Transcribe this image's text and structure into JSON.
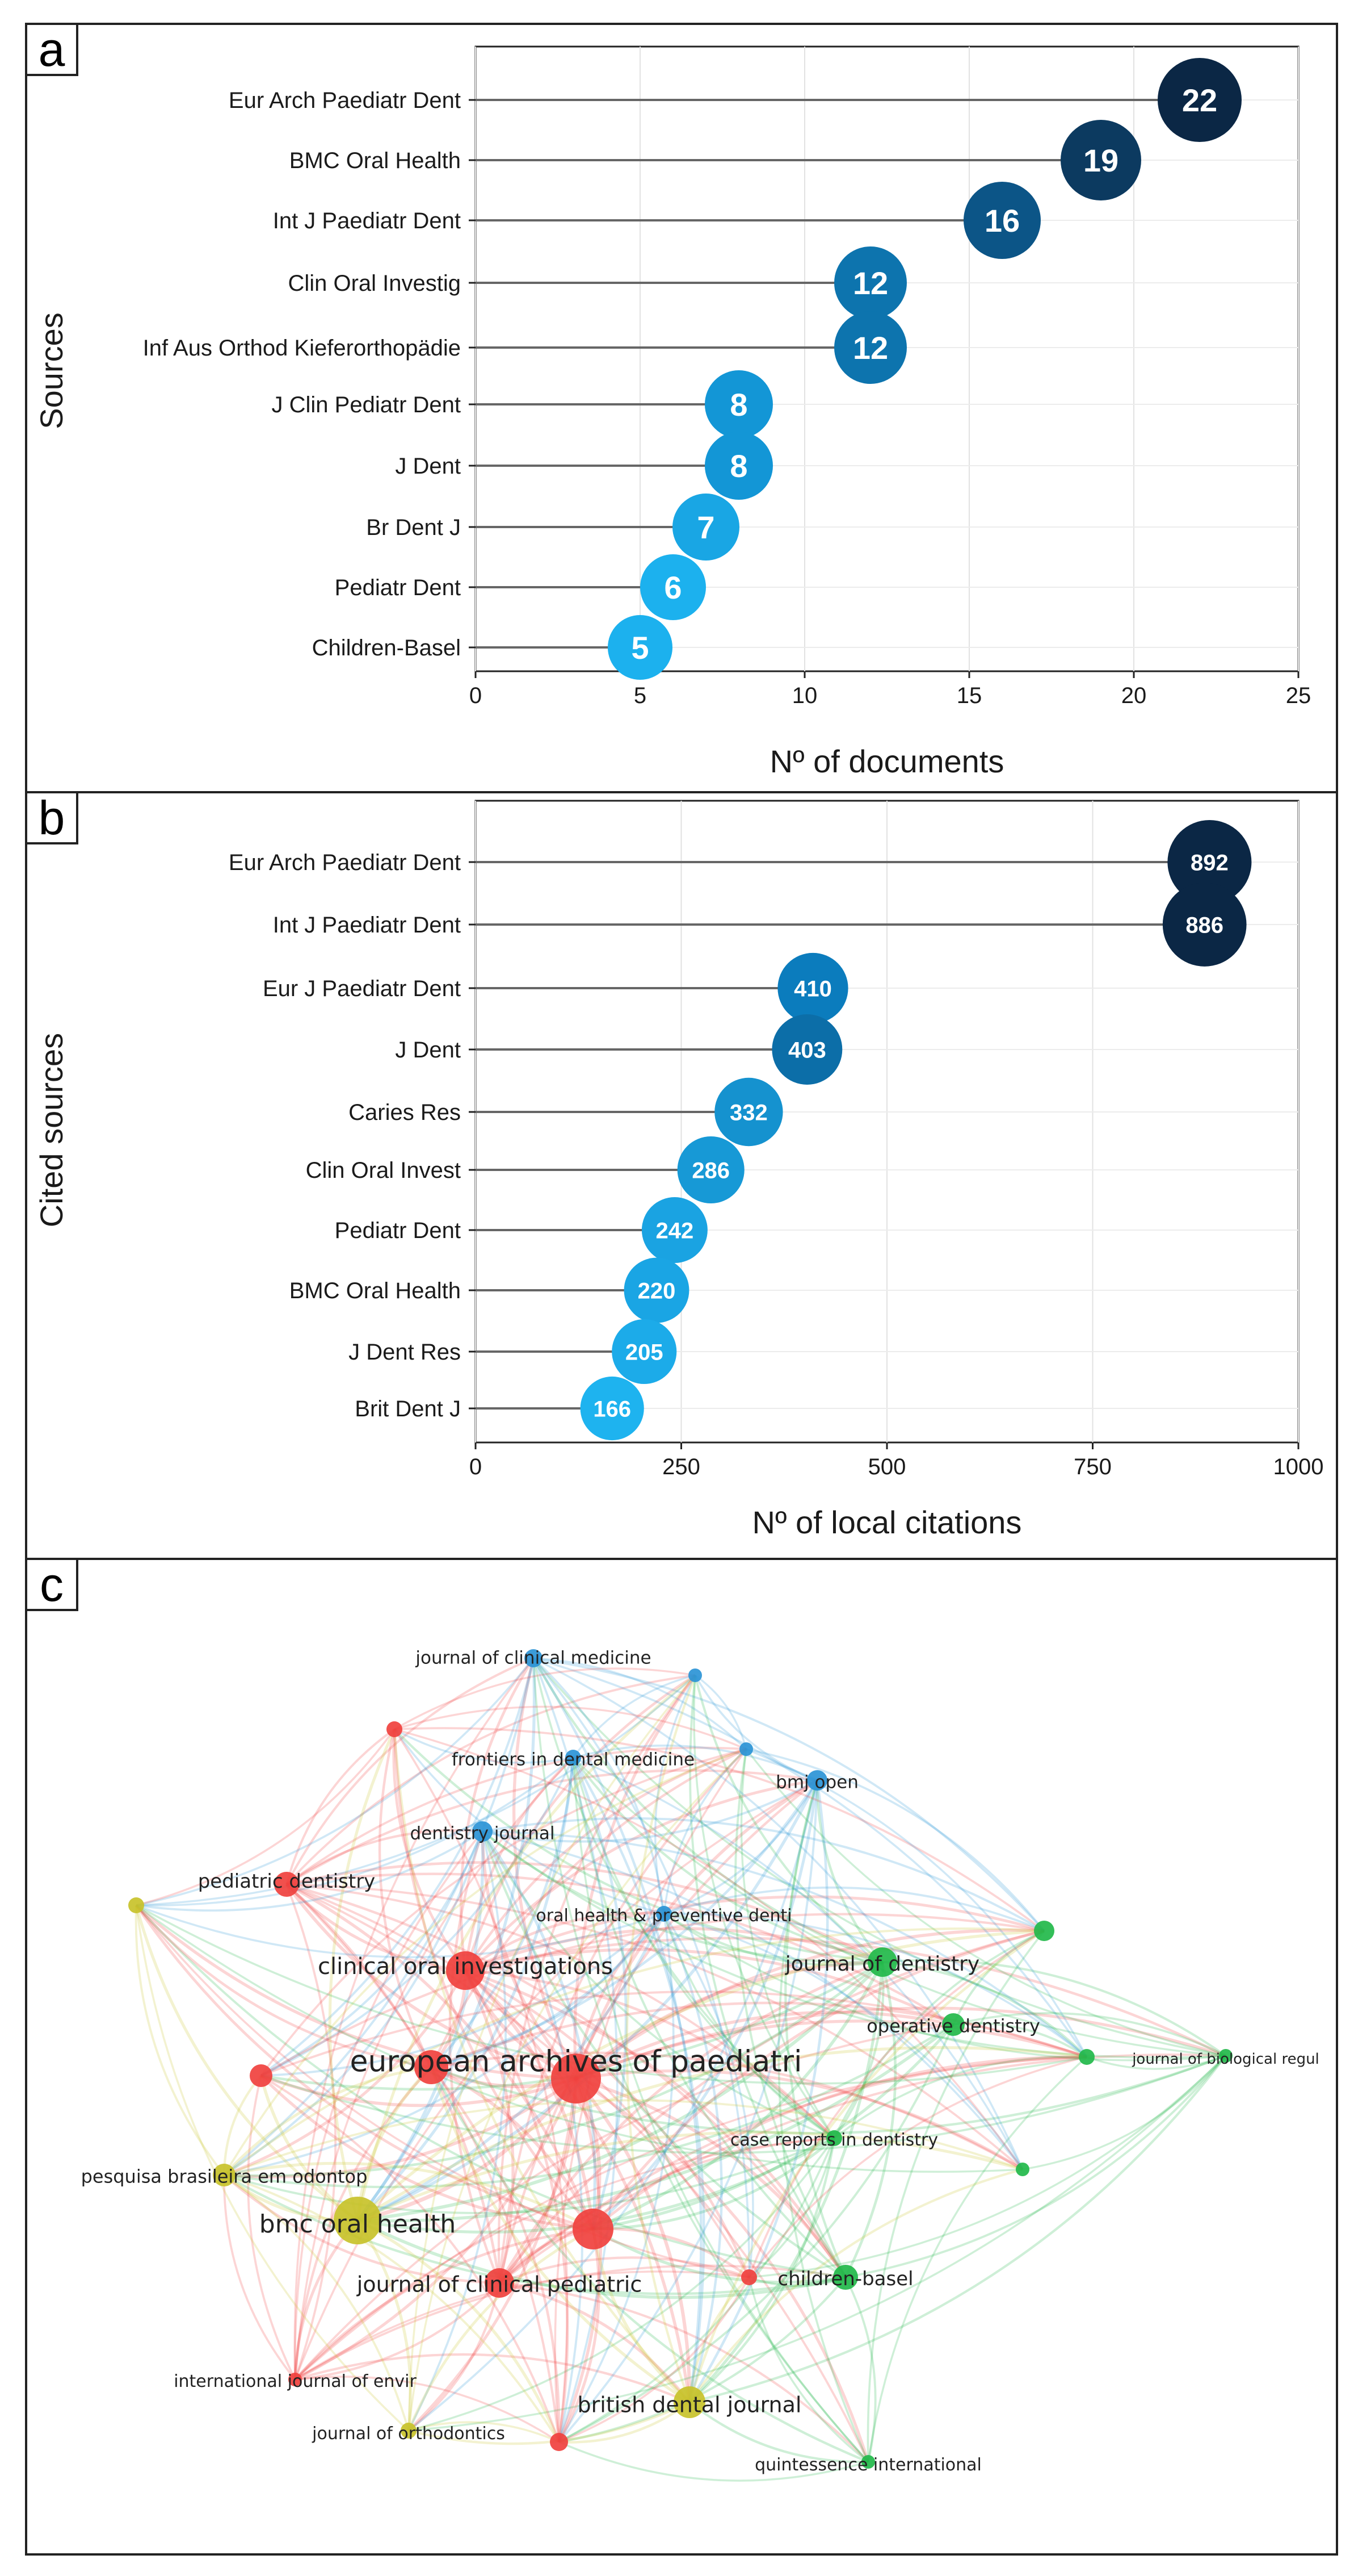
{
  "panels": [
    {
      "letter": "a"
    },
    {
      "letter": "b"
    },
    {
      "letter": "c"
    }
  ],
  "chart_data": [
    {
      "type": "scatter",
      "subtype": "lollipop",
      "panel": "a",
      "ylabel": "Sources",
      "xlabel": "Nº of documents",
      "xlim": [
        0,
        25
      ],
      "xticks": [
        0,
        5,
        10,
        15,
        20,
        25
      ],
      "categories": [
        "Eur Arch Paediatr Dent",
        "BMC Oral Health",
        "Int J Paediatr Dent",
        "Clin Oral Investig",
        "Inf Aus Orthod Kieferorthopädie",
        "J Clin Pediatr Dent",
        "J Dent",
        "Br Dent J",
        "Pediatr Dent",
        "Children-Basel"
      ],
      "values": [
        22,
        19,
        16,
        12,
        12,
        8,
        8,
        7,
        6,
        5
      ],
      "colors": [
        "#0b2745",
        "#0c3a60",
        "#0c5587",
        "#0d74ae",
        "#0d74ae",
        "#1396d6",
        "#1396d6",
        "#19a6e4",
        "#1cb1ee",
        "#1cb1ee"
      ]
    },
    {
      "type": "scatter",
      "subtype": "lollipop",
      "panel": "b",
      "ylabel": "Cited sources",
      "xlabel": "Nº of local citations",
      "xlim": [
        0,
        1000
      ],
      "xticks": [
        0,
        250,
        500,
        750,
        1000
      ],
      "categories": [
        "Eur Arch Paediatr Dent",
        "Int J Paediatr Dent",
        "Eur J Paediatr Dent",
        "J Dent",
        "Caries Res",
        "Clin Oral Invest",
        "Pediatr Dent",
        "BMC Oral Health",
        "J Dent Res",
        "Brit Dent J"
      ],
      "values": [
        892,
        886,
        410,
        403,
        332,
        286,
        242,
        220,
        205,
        166
      ],
      "colors": [
        "#0b2745",
        "#0b2745",
        "#0b7cbd",
        "#0c6ea8",
        "#1592cf",
        "#1799d6",
        "#1aa3e2",
        "#1aa5e4",
        "#1cabe9",
        "#1eb3ef"
      ]
    },
    {
      "type": "network",
      "panel": "c",
      "description": "co-citation network of sources",
      "clusters": {
        "red": "#f0413e",
        "green": "#22b84a",
        "blue": "#2b94d6",
        "yellow": "#c8c22a"
      },
      "nodes": [
        {
          "label": "european archives of paediatri",
          "cluster": "red",
          "size": 44
        },
        {
          "label": "clinical oral investigations",
          "cluster": "red",
          "size": 34
        },
        {
          "label": "pediatric dentistry",
          "cluster": "red",
          "size": 22
        },
        {
          "label": "journal of clinical pediatric",
          "cluster": "red",
          "size": 26
        },
        {
          "label": "international journal of envir",
          "cluster": "red",
          "size": 12
        },
        {
          "label": "journal of dentistry",
          "cluster": "green",
          "size": 26
        },
        {
          "label": "operative dentistry",
          "cluster": "green",
          "size": 20
        },
        {
          "label": "journal of biological regul",
          "cluster": "green",
          "size": 12
        },
        {
          "label": "case reports in dentistry",
          "cluster": "green",
          "size": 14
        },
        {
          "label": "children-basel",
          "cluster": "green",
          "size": 22
        },
        {
          "label": "quintessence international",
          "cluster": "green",
          "size": 12
        },
        {
          "label": "journal of clinical medicine",
          "cluster": "blue",
          "size": 16
        },
        {
          "label": "frontiers in dental medicine",
          "cluster": "blue",
          "size": 14
        },
        {
          "label": "bmj open",
          "cluster": "blue",
          "size": 18
        },
        {
          "label": "dentistry journal",
          "cluster": "blue",
          "size": 18
        },
        {
          "label": "oral health & preventive denti",
          "cluster": "blue",
          "size": 14
        },
        {
          "label": "bmc oral health",
          "cluster": "yellow",
          "size": 42
        },
        {
          "label": "pesquisa brasileira em odontop",
          "cluster": "yellow",
          "size": 20
        },
        {
          "label": "british dental journal",
          "cluster": "yellow",
          "size": 28
        },
        {
          "label": "journal of orthodontics",
          "cluster": "yellow",
          "size": 14
        }
      ]
    }
  ]
}
